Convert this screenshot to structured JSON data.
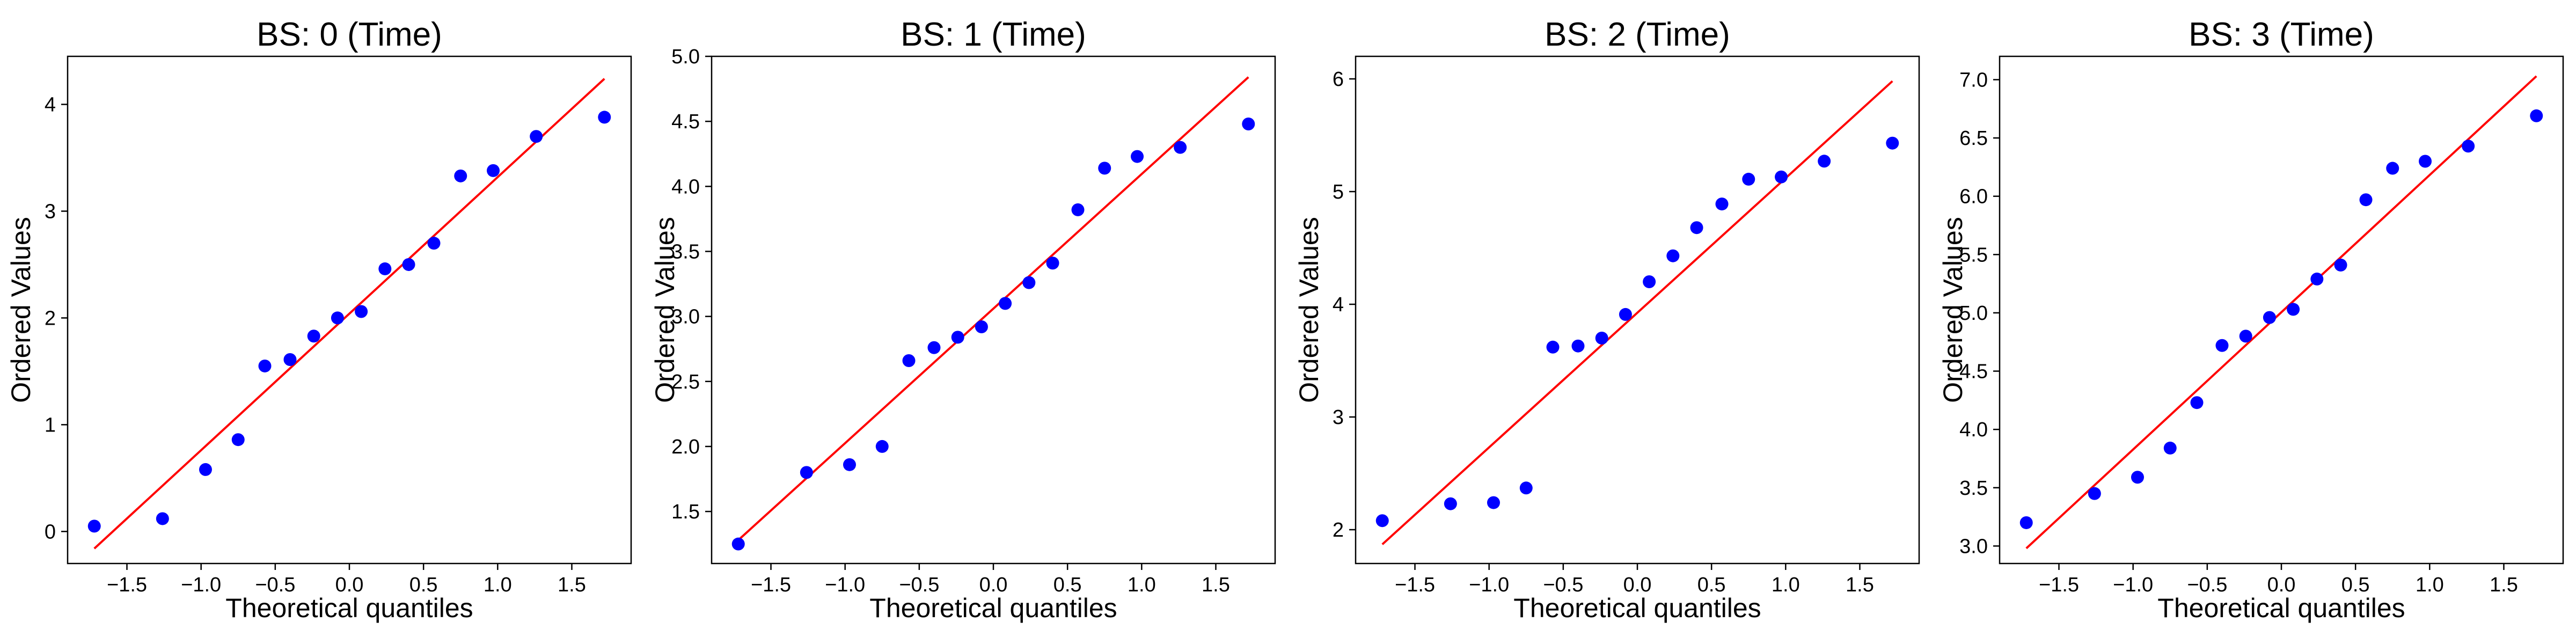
{
  "chart_data": [
    {
      "type": "scatter",
      "title": "BS: 0 (Time)",
      "xlabel": "Theoretical quantiles",
      "ylabel": "Ordered Values",
      "xlim": [
        -1.9,
        1.9
      ],
      "ylim": [
        -0.3,
        4.45
      ],
      "xticks": [
        -1.5,
        -1.0,
        -0.5,
        0.0,
        0.5,
        1.0,
        1.5
      ],
      "xtick_labels": [
        "−1.5",
        "−1.0",
        "−0.5",
        "0.0",
        "0.5",
        "1.0",
        "1.5"
      ],
      "yticks": [
        0,
        1,
        2,
        3,
        4
      ],
      "ytick_labels": [
        "0",
        "1",
        "2",
        "3",
        "4"
      ],
      "grid": false,
      "points": {
        "x": [
          -1.72,
          -1.26,
          -0.97,
          -0.75,
          -0.57,
          -0.4,
          -0.24,
          -0.08,
          0.08,
          0.24,
          0.4,
          0.57,
          0.75,
          0.97,
          1.26,
          1.72
        ],
        "y": [
          0.05,
          0.12,
          0.58,
          0.86,
          1.55,
          1.61,
          1.83,
          2.0,
          2.06,
          2.46,
          2.5,
          2.7,
          3.33,
          3.38,
          3.7,
          3.88
        ],
        "color": "#0000ff"
      },
      "fit_line": {
        "x": [
          -1.72,
          1.72
        ],
        "y": [
          -0.16,
          4.24
        ],
        "color": "#ff0000"
      }
    },
    {
      "type": "scatter",
      "title": "BS: 1 (Time)",
      "xlabel": "Theoretical quantiles",
      "ylabel": "Ordered Values",
      "xlim": [
        -1.9,
        1.9
      ],
      "ylim": [
        1.1,
        5.0
      ],
      "xticks": [
        -1.5,
        -1.0,
        -0.5,
        0.0,
        0.5,
        1.0,
        1.5
      ],
      "xtick_labels": [
        "−1.5",
        "−1.0",
        "−0.5",
        "0.0",
        "0.5",
        "1.0",
        "1.5"
      ],
      "yticks": [
        1.5,
        2.0,
        2.5,
        3.0,
        3.5,
        4.0,
        4.5,
        5.0
      ],
      "ytick_labels": [
        "1.5",
        "2.0",
        "2.5",
        "3.0",
        "3.5",
        "4.0",
        "4.5",
        "5.0"
      ],
      "grid": false,
      "points": {
        "x": [
          -1.72,
          -1.26,
          -0.97,
          -0.75,
          -0.57,
          -0.4,
          -0.24,
          -0.08,
          0.08,
          0.24,
          0.4,
          0.57,
          0.75,
          0.97,
          1.26,
          1.72
        ],
        "y": [
          1.25,
          1.8,
          1.86,
          2.0,
          2.66,
          2.76,
          2.84,
          2.92,
          3.1,
          3.26,
          3.41,
          3.82,
          4.14,
          4.23,
          4.3,
          4.48
        ],
        "color": "#0000ff"
      },
      "fit_line": {
        "x": [
          -1.72,
          1.72
        ],
        "y": [
          1.28,
          4.84
        ],
        "color": "#ff0000"
      }
    },
    {
      "type": "scatter",
      "title": "BS: 2 (Time)",
      "xlabel": "Theoretical quantiles",
      "ylabel": "Ordered Values",
      "xlim": [
        -1.9,
        1.9
      ],
      "ylim": [
        1.7,
        6.2
      ],
      "xticks": [
        -1.5,
        -1.0,
        -0.5,
        0.0,
        0.5,
        1.0,
        1.5
      ],
      "xtick_labels": [
        "−1.5",
        "−1.0",
        "−0.5",
        "0.0",
        "0.5",
        "1.0",
        "1.5"
      ],
      "yticks": [
        2,
        3,
        4,
        5,
        6
      ],
      "ytick_labels": [
        "2",
        "3",
        "4",
        "5",
        "6"
      ],
      "grid": false,
      "points": {
        "x": [
          -1.72,
          -1.26,
          -0.97,
          -0.75,
          -0.57,
          -0.4,
          -0.24,
          -0.08,
          0.08,
          0.24,
          0.4,
          0.57,
          0.75,
          0.97,
          1.26,
          1.72
        ],
        "y": [
          2.08,
          2.23,
          2.24,
          2.37,
          3.62,
          3.63,
          3.7,
          3.91,
          4.2,
          4.43,
          4.68,
          4.89,
          5.11,
          5.13,
          5.27,
          5.43
        ],
        "color": "#0000ff"
      },
      "fit_line": {
        "x": [
          -1.72,
          1.72
        ],
        "y": [
          1.87,
          5.98
        ],
        "color": "#ff0000"
      }
    },
    {
      "type": "scatter",
      "title": "BS: 3 (Time)",
      "xlabel": "Theoretical quantiles",
      "ylabel": "Ordered Values",
      "xlim": [
        -1.9,
        1.9
      ],
      "ylim": [
        2.85,
        7.2
      ],
      "xticks": [
        -1.5,
        -1.0,
        -0.5,
        0.0,
        0.5,
        1.0,
        1.5
      ],
      "xtick_labels": [
        "−1.5",
        "−1.0",
        "−0.5",
        "0.0",
        "0.5",
        "1.0",
        "1.5"
      ],
      "yticks": [
        3.0,
        3.5,
        4.0,
        4.5,
        5.0,
        5.5,
        6.0,
        6.5,
        7.0
      ],
      "ytick_labels": [
        "3.0",
        "3.5",
        "4.0",
        "4.5",
        "5.0",
        "5.5",
        "6.0",
        "6.5",
        "7.0"
      ],
      "grid": false,
      "points": {
        "x": [
          -1.72,
          -1.26,
          -0.97,
          -0.75,
          -0.57,
          -0.4,
          -0.24,
          -0.08,
          0.08,
          0.24,
          0.4,
          0.57,
          0.75,
          0.97,
          1.26,
          1.72
        ],
        "y": [
          3.2,
          3.45,
          3.59,
          3.84,
          4.23,
          4.72,
          4.8,
          4.96,
          5.03,
          5.29,
          5.41,
          5.97,
          6.24,
          6.3,
          6.43,
          6.69
        ],
        "color": "#0000ff"
      },
      "fit_line": {
        "x": [
          -1.72,
          1.72
        ],
        "y": [
          2.98,
          7.03
        ],
        "color": "#ff0000"
      }
    }
  ]
}
